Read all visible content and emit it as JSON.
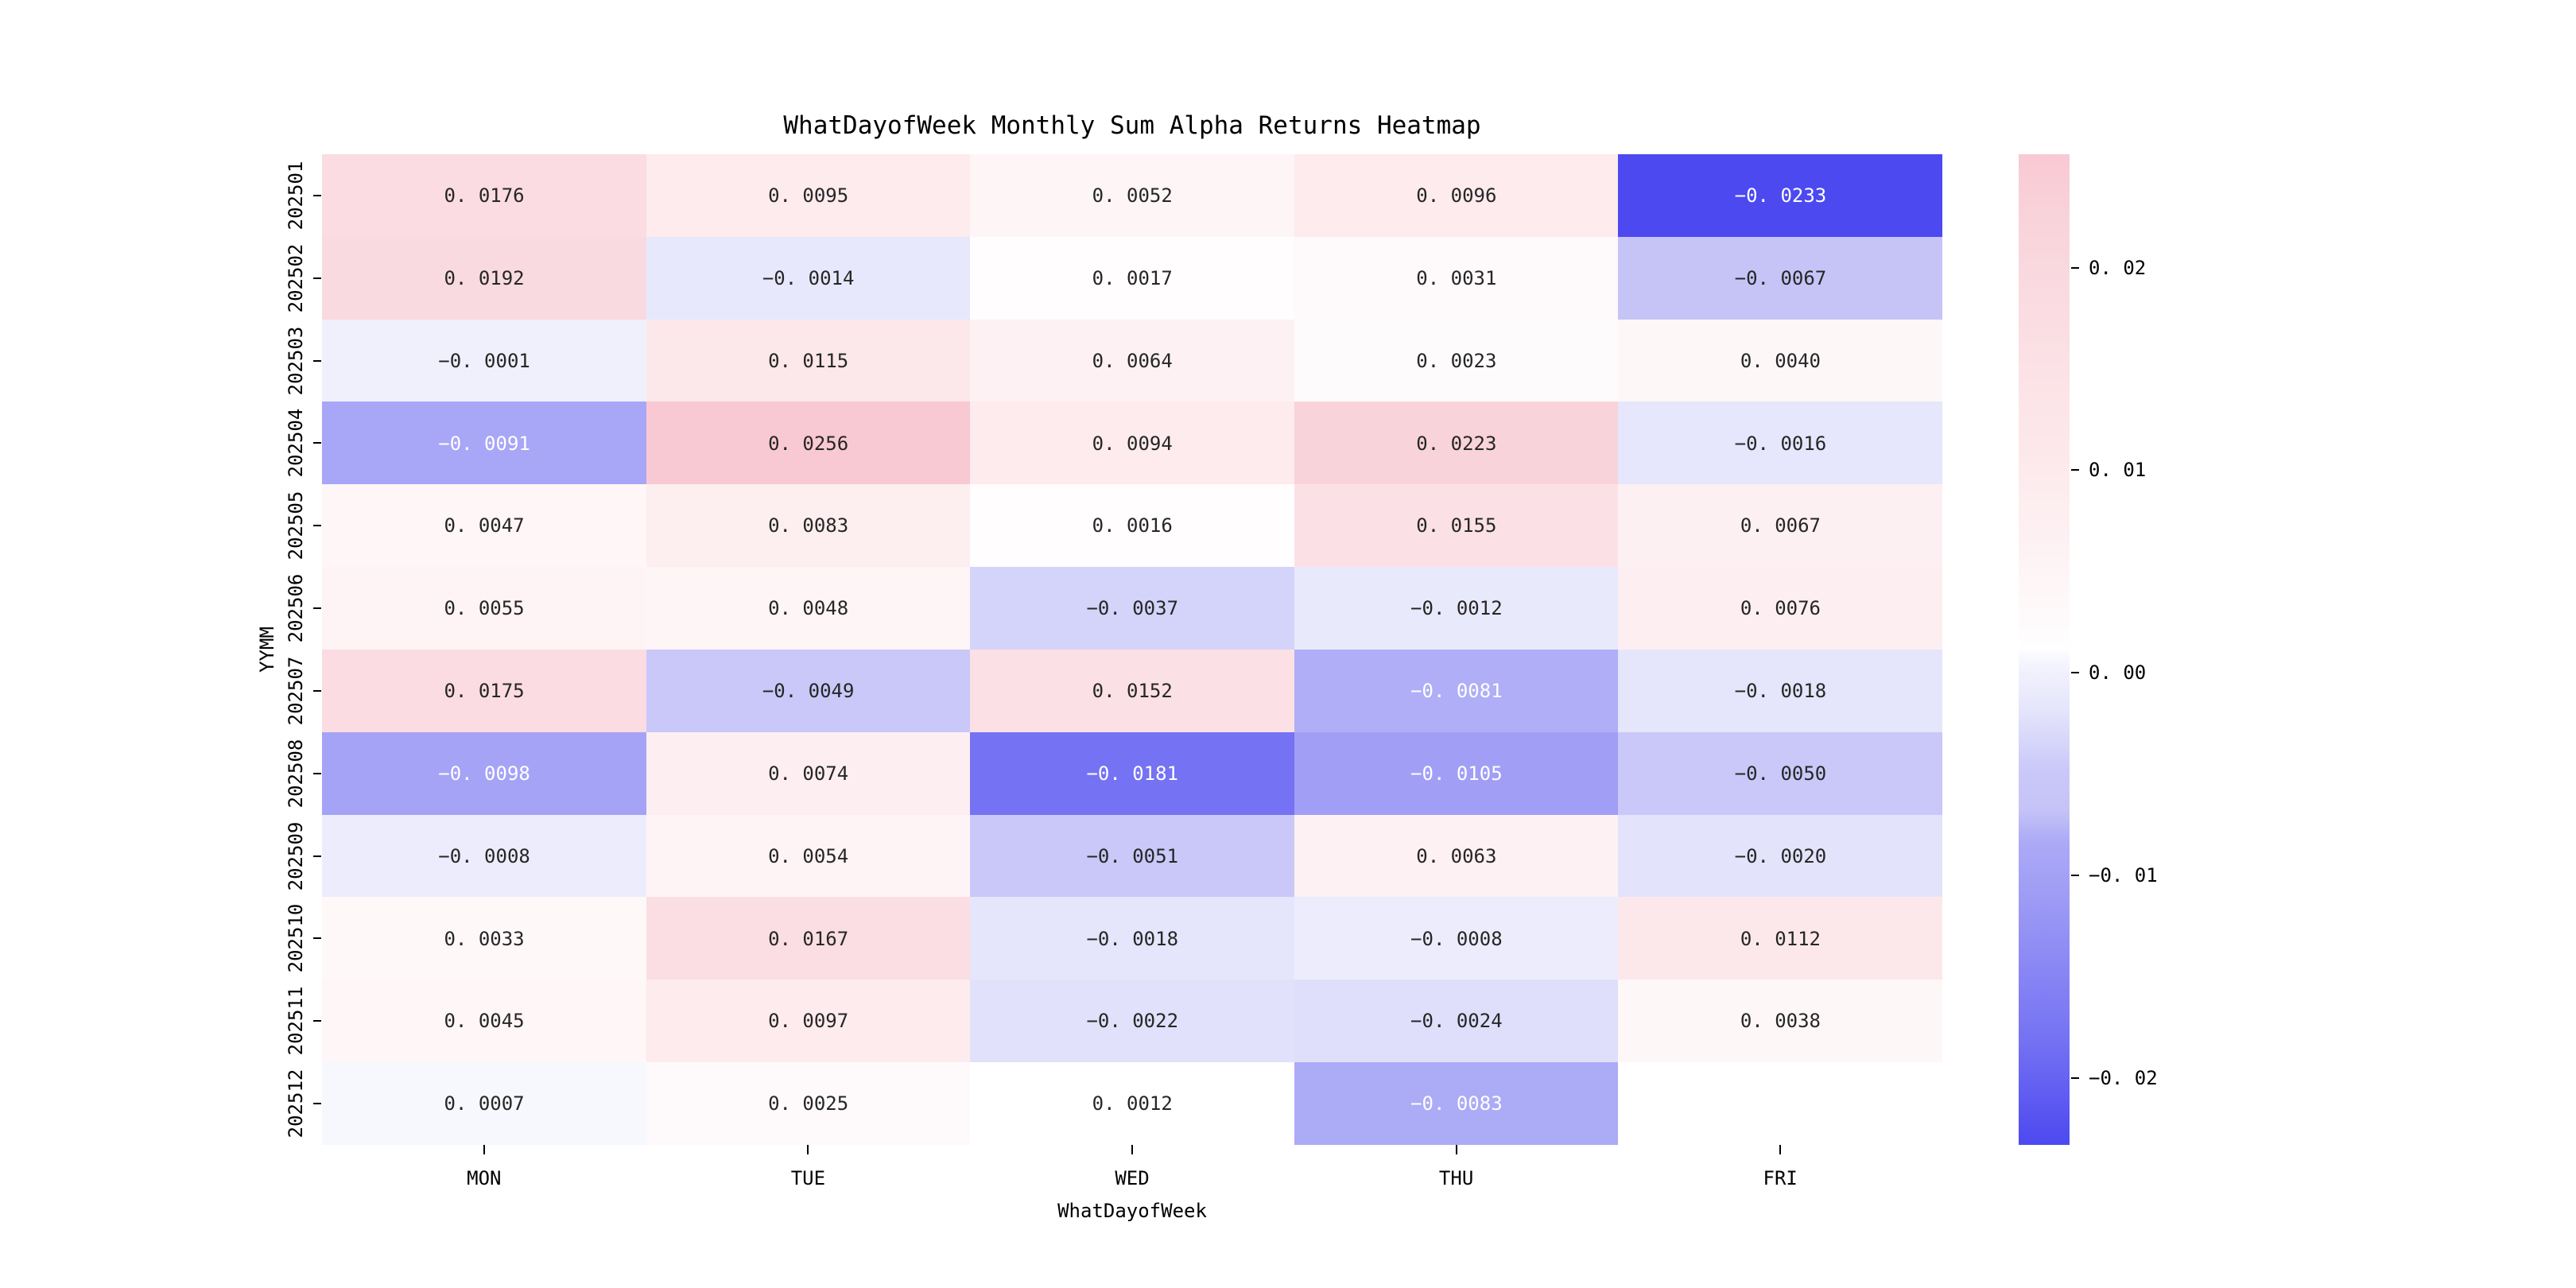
{
  "figure": {
    "background_color": "#ffffff",
    "text_color": "#000000",
    "annotation_dark_color": "#262626",
    "annotation_light_color": "#ffffff",
    "tick_mark_color": "#000000"
  },
  "chart_data": {
    "type": "heatmap",
    "title": "WhatDayofWeek Monthly Sum Alpha Returns Heatmap",
    "xlabel": "WhatDayofWeek",
    "ylabel": "YYMM",
    "x_categories": [
      "MON",
      "TUE",
      "WED",
      "THU",
      "FRI"
    ],
    "y_categories": [
      "202501",
      "202502",
      "202503",
      "202504",
      "202505",
      "202506",
      "202507",
      "202508",
      "202509",
      "202510",
      "202511",
      "202512"
    ],
    "values": [
      [
        0.0176,
        0.0095,
        0.0052,
        0.0096,
        -0.0233
      ],
      [
        0.0192,
        -0.0014,
        0.0017,
        0.0031,
        -0.0067
      ],
      [
        -0.0001,
        0.0115,
        0.0064,
        0.0023,
        0.004
      ],
      [
        -0.0091,
        0.0256,
        0.0094,
        0.0223,
        -0.0016
      ],
      [
        0.0047,
        0.0083,
        0.0016,
        0.0155,
        0.0067
      ],
      [
        0.0055,
        0.0048,
        -0.0037,
        -0.0012,
        0.0076
      ],
      [
        0.0175,
        -0.0049,
        0.0152,
        -0.0081,
        -0.0018
      ],
      [
        -0.0098,
        0.0074,
        -0.0181,
        -0.0105,
        -0.005
      ],
      [
        -0.0008,
        0.0054,
        -0.0051,
        0.0063,
        -0.002
      ],
      [
        0.0033,
        0.0167,
        -0.0018,
        -0.0008,
        0.0112
      ],
      [
        0.0045,
        0.0097,
        -0.0022,
        -0.0024,
        0.0038
      ],
      [
        0.0007,
        0.0025,
        0.0012,
        -0.0083,
        null
      ]
    ],
    "value_decimals": 4,
    "grid": false,
    "vmin": -0.0233,
    "vmax": 0.0256,
    "colorbar": {
      "position": "right",
      "tick_values": [
        0.02,
        0.01,
        0.0,
        -0.01,
        -0.02
      ],
      "tick_decimals": 2
    },
    "colormap_stops": [
      {
        "value": -0.0233,
        "color": "#4c49f0"
      },
      {
        "value": -0.0181,
        "color": "#7572f3"
      },
      {
        "value": -0.0105,
        "color": "#a19ff5"
      },
      {
        "value": -0.0091,
        "color": "#a8a6f6"
      },
      {
        "value": -0.0083,
        "color": "#acabf6"
      },
      {
        "value": -0.0067,
        "color": "#c6c4f7"
      },
      {
        "value": -0.0049,
        "color": "#c9c8f8"
      },
      {
        "value": -0.0037,
        "color": "#d4d3fa"
      },
      {
        "value": -0.002,
        "color": "#e3e3fb"
      },
      {
        "value": -0.0012,
        "color": "#e9e9fc"
      },
      {
        "value": -0.0001,
        "color": "#f0f0fd"
      },
      {
        "value": 0.0007,
        "color": "#f7f7fe"
      },
      {
        "value": 0.0012,
        "color": "#ffffff"
      },
      {
        "value": 0.0025,
        "color": "#fefafb"
      },
      {
        "value": 0.004,
        "color": "#fef7f8"
      },
      {
        "value": 0.0055,
        "color": "#fef4f5"
      },
      {
        "value": 0.0067,
        "color": "#fdf0f2"
      },
      {
        "value": 0.0083,
        "color": "#fdeef0"
      },
      {
        "value": 0.0096,
        "color": "#fdebee"
      },
      {
        "value": 0.0115,
        "color": "#fce7ea"
      },
      {
        "value": 0.0155,
        "color": "#fbe1e5"
      },
      {
        "value": 0.0176,
        "color": "#fadce2"
      },
      {
        "value": 0.0192,
        "color": "#f9dae0"
      },
      {
        "value": 0.0223,
        "color": "#f9d3da"
      },
      {
        "value": 0.0256,
        "color": "#f9c9d3"
      }
    ]
  }
}
